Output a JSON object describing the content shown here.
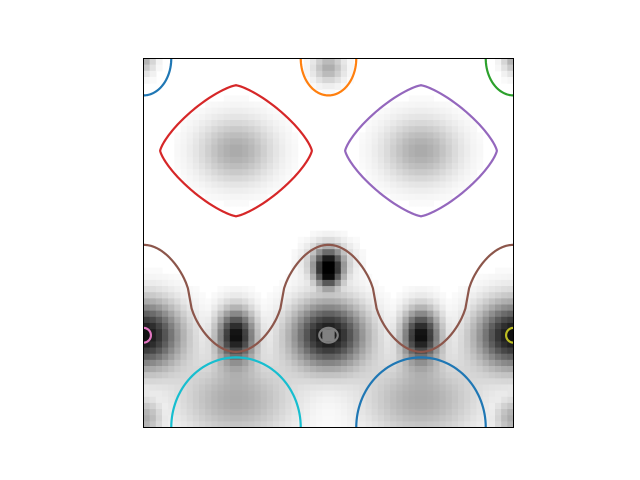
{
  "chart_data": {
    "type": "heatmap",
    "colormap": "gray",
    "frame": true,
    "axes_visible": false,
    "xlim": [
      0,
      2
    ],
    "ylim": [
      0,
      2
    ],
    "background": "#ffffff",
    "contours": [
      {
        "color": "#1f77b4",
        "shape": "arc",
        "center": [
          0.0,
          0.0
        ],
        "r": [
          0.15,
          0.2
        ],
        "range": [
          0,
          90
        ]
      },
      {
        "color": "#ff7f0e",
        "shape": "arc",
        "center": [
          1.0,
          0.0
        ],
        "r": [
          0.15,
          0.2
        ],
        "range": [
          0,
          180
        ]
      },
      {
        "color": "#2ca02c",
        "shape": "arc",
        "center": [
          2.0,
          0.0
        ],
        "r": [
          0.15,
          0.2
        ],
        "range": [
          90,
          180
        ]
      },
      {
        "color": "#d62728",
        "shape": "diamond",
        "center": [
          0.5,
          0.5
        ],
        "r": [
          0.41,
          0.355
        ],
        "p": 1.5
      },
      {
        "color": "#9467bd",
        "shape": "diamond",
        "center": [
          1.5,
          0.5
        ],
        "r": [
          0.41,
          0.355
        ],
        "p": 1.5
      },
      {
        "color": "#8c564b",
        "shape": "wave",
        "y_mid": 1.3,
        "amp": 0.29,
        "x_range": [
          0,
          2
        ]
      },
      {
        "color": "#e377c2",
        "shape": "arc",
        "center": [
          0.0,
          1.5
        ],
        "r": [
          0.04,
          0.04
        ],
        "range": [
          -90,
          90
        ]
      },
      {
        "color": "#7f7f7f",
        "shape": "ellipse",
        "center": [
          1.0,
          1.5
        ],
        "r": [
          0.05,
          0.04
        ]
      },
      {
        "color": "#bcbd22",
        "shape": "arc",
        "center": [
          2.0,
          1.5
        ],
        "r": [
          0.04,
          0.04
        ],
        "range": [
          90,
          270
        ]
      },
      {
        "color": "#17becf",
        "shape": "arc",
        "center": [
          0.5,
          2.0
        ],
        "r": [
          0.35,
          0.38
        ],
        "range": [
          180,
          360
        ]
      },
      {
        "color": "#1f77b4",
        "shape": "arc",
        "center": [
          1.5,
          2.0
        ],
        "r": [
          0.35,
          0.38
        ],
        "range": [
          180,
          360
        ]
      }
    ]
  }
}
